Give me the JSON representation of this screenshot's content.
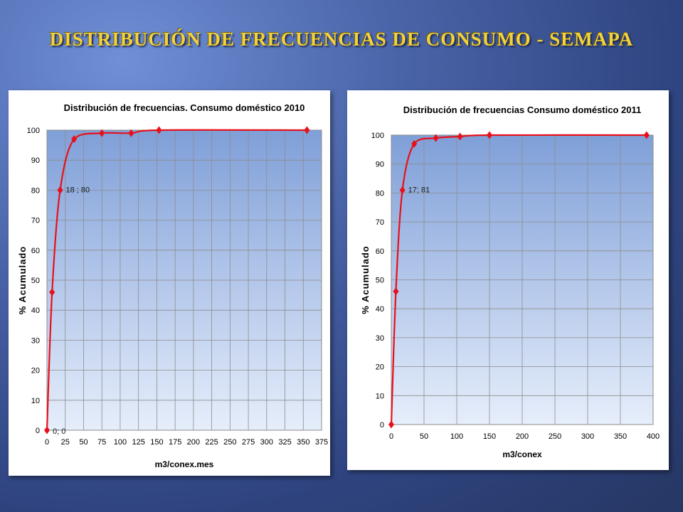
{
  "slide": {
    "title": "DISTRIBUCIÓN DE FRECUENCIAS DE CONSUMO - SEMAPA",
    "colors": {
      "title": "#f3d23a",
      "series": "#e8101a",
      "plot_top": "#7f9fd8",
      "plot_bottom": "#e6eefb"
    }
  },
  "chart_data": [
    {
      "type": "line",
      "title": "Distribución de frecuencias. Consumo doméstico 2010",
      "xlabel": "m3/conex.mes",
      "ylabel": "% Acumulado",
      "xlim": [
        0,
        375
      ],
      "ylim": [
        0,
        100
      ],
      "xticks": [
        0,
        25,
        50,
        75,
        100,
        125,
        150,
        175,
        200,
        225,
        250,
        275,
        300,
        325,
        350,
        375
      ],
      "yticks": [
        0,
        10,
        20,
        30,
        40,
        50,
        60,
        70,
        80,
        90,
        100
      ],
      "grid": true,
      "series": [
        {
          "x": [
            0,
            7,
            18,
            37,
            75,
            115,
            153,
            355
          ],
          "y": [
            0,
            46,
            80,
            97,
            99,
            99,
            100,
            100
          ]
        }
      ],
      "annotations": [
        {
          "x": 0,
          "y": 0,
          "text": "0; 0"
        },
        {
          "x": 18,
          "y": 80,
          "text": "18 ; 80"
        }
      ]
    },
    {
      "type": "line",
      "title": "Distribución de frecuencias  Consumo doméstico 2011",
      "xlabel": "m3/conex",
      "ylabel": "% Acumulado",
      "xlim": [
        0,
        400
      ],
      "ylim": [
        0,
        100
      ],
      "xticks": [
        0,
        50,
        100,
        150,
        200,
        250,
        300,
        350,
        400
      ],
      "yticks": [
        0,
        10,
        20,
        30,
        40,
        50,
        60,
        70,
        80,
        90,
        100
      ],
      "grid": true,
      "series": [
        {
          "x": [
            0,
            7,
            17,
            35,
            68,
            105,
            150,
            390
          ],
          "y": [
            0,
            46,
            81,
            97,
            99,
            99.5,
            100,
            100
          ]
        }
      ],
      "annotations": [
        {
          "x": 17,
          "y": 81,
          "text": "17; 81"
        }
      ]
    }
  ]
}
